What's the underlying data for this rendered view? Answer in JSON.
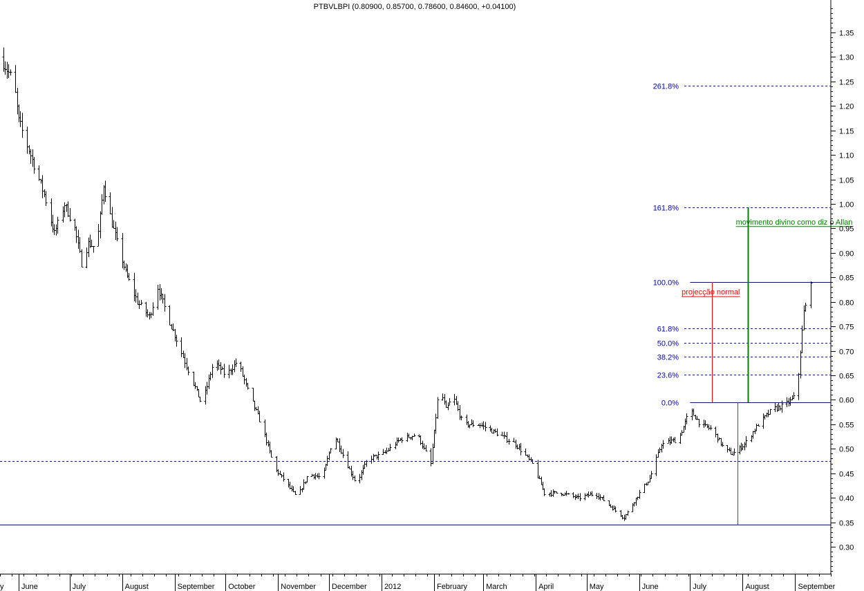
{
  "chart_data": {
    "type": "ohlc",
    "title": "PTBVLBPI (0.80900, 0.85700, 0.78600, 0.84600, +0.04100)",
    "price_axis": {
      "ylim": [
        0.245,
        1.405
      ],
      "tick_values": [
        0.3,
        0.35,
        0.4,
        0.45,
        0.5,
        0.55,
        0.6,
        0.65,
        0.7,
        0.75,
        0.8,
        0.85,
        0.9,
        0.95,
        1.0,
        1.05,
        1.1,
        1.15,
        1.2,
        1.25,
        1.3,
        1.35
      ],
      "tick_labels": [
        "0.30",
        "0.35",
        "0.40",
        "0.45",
        "0.50",
        "0.55",
        "0.60",
        "0.65",
        "0.70",
        "0.75",
        "0.80",
        "0.85",
        "0.90",
        "0.95",
        "1.00",
        "1.05",
        "1.10",
        "1.15",
        "1.20",
        "1.25",
        "1.30",
        "1.35"
      ]
    },
    "time_axis": {
      "start": "2011-05-21",
      "end": "2012-09-22",
      "month_separators": [
        "2011-06-01",
        "2011-07-01",
        "2011-08-01",
        "2011-09-01",
        "2011-10-01",
        "2011-11-01",
        "2011-12-01",
        "2012-01-01",
        "2012-02-01",
        "2012-03-01",
        "2012-04-01",
        "2012-05-01",
        "2012-06-01",
        "2012-07-01",
        "2012-08-01",
        "2012-09-01"
      ],
      "labels": [
        {
          "text": "y",
          "date": "2011-05-22"
        },
        {
          "text": "June",
          "date": "2011-06-01"
        },
        {
          "text": "July",
          "date": "2011-07-01"
        },
        {
          "text": "August",
          "date": "2011-08-01"
        },
        {
          "text": "September",
          "date": "2011-09-01"
        },
        {
          "text": "October",
          "date": "2011-10-01"
        },
        {
          "text": "November",
          "date": "2011-11-01"
        },
        {
          "text": "December",
          "date": "2011-12-01"
        },
        {
          "text": "2012",
          "date": "2012-01-01"
        },
        {
          "text": "February",
          "date": "2012-02-01"
        },
        {
          "text": "March",
          "date": "2012-03-01"
        },
        {
          "text": "April",
          "date": "2012-04-01"
        },
        {
          "text": "May",
          "date": "2012-05-01"
        },
        {
          "text": "June",
          "date": "2012-06-01"
        },
        {
          "text": "July",
          "date": "2012-07-01"
        },
        {
          "text": "August",
          "date": "2012-08-01"
        },
        {
          "text": "September",
          "date": "2012-09-01"
        }
      ]
    },
    "price_path": [
      {
        "date": "2011-05-21",
        "price": 1.3
      },
      {
        "date": "2011-05-29",
        "price": 1.25
      },
      {
        "date": "2011-06-01",
        "price": 1.17
      },
      {
        "date": "2011-06-09",
        "price": 1.09
      },
      {
        "date": "2011-06-16",
        "price": 1.02
      },
      {
        "date": "2011-06-22",
        "price": 0.94
      },
      {
        "date": "2011-06-28",
        "price": 1.0
      },
      {
        "date": "2011-07-04",
        "price": 0.95
      },
      {
        "date": "2011-07-08",
        "price": 0.88
      },
      {
        "date": "2011-07-12",
        "price": 0.92
      },
      {
        "date": "2011-07-17",
        "price": 0.91
      },
      {
        "date": "2011-07-21",
        "price": 1.04
      },
      {
        "date": "2011-07-26",
        "price": 0.96
      },
      {
        "date": "2011-08-03",
        "price": 0.86
      },
      {
        "date": "2011-08-10",
        "price": 0.8
      },
      {
        "date": "2011-08-17",
        "price": 0.77
      },
      {
        "date": "2011-08-22",
        "price": 0.83
      },
      {
        "date": "2011-08-30",
        "price": 0.75
      },
      {
        "date": "2011-09-08",
        "price": 0.67
      },
      {
        "date": "2011-09-17",
        "price": 0.59
      },
      {
        "date": "2011-09-24",
        "price": 0.68
      },
      {
        "date": "2011-10-01",
        "price": 0.65
      },
      {
        "date": "2011-10-08",
        "price": 0.68
      },
      {
        "date": "2011-10-14",
        "price": 0.62
      },
      {
        "date": "2011-10-22",
        "price": 0.55
      },
      {
        "date": "2011-10-30",
        "price": 0.46
      },
      {
        "date": "2011-11-06",
        "price": 0.43
      },
      {
        "date": "2011-11-12",
        "price": 0.4
      },
      {
        "date": "2011-11-19",
        "price": 0.45
      },
      {
        "date": "2011-11-27",
        "price": 0.44
      },
      {
        "date": "2011-12-04",
        "price": 0.53
      },
      {
        "date": "2011-12-10",
        "price": 0.48
      },
      {
        "date": "2011-12-17",
        "price": 0.43
      },
      {
        "date": "2011-12-24",
        "price": 0.48
      },
      {
        "date": "2012-01-02",
        "price": 0.49
      },
      {
        "date": "2012-01-12",
        "price": 0.52
      },
      {
        "date": "2012-01-22",
        "price": 0.53
      },
      {
        "date": "2012-01-30",
        "price": 0.47
      },
      {
        "date": "2012-02-04",
        "price": 0.63
      },
      {
        "date": "2012-02-08",
        "price": 0.58
      },
      {
        "date": "2012-02-12",
        "price": 0.61
      },
      {
        "date": "2012-02-18",
        "price": 0.55
      },
      {
        "date": "2012-02-28",
        "price": 0.55
      },
      {
        "date": "2012-03-10",
        "price": 0.53
      },
      {
        "date": "2012-03-20",
        "price": 0.51
      },
      {
        "date": "2012-03-30",
        "price": 0.47
      },
      {
        "date": "2012-04-06",
        "price": 0.41
      },
      {
        "date": "2012-04-16",
        "price": 0.41
      },
      {
        "date": "2012-04-26",
        "price": 0.4
      },
      {
        "date": "2012-05-06",
        "price": 0.41
      },
      {
        "date": "2012-05-16",
        "price": 0.38
      },
      {
        "date": "2012-05-23",
        "price": 0.36
      },
      {
        "date": "2012-06-01",
        "price": 0.41
      },
      {
        "date": "2012-06-07",
        "price": 0.44
      },
      {
        "date": "2012-06-14",
        "price": 0.51
      },
      {
        "date": "2012-06-24",
        "price": 0.52
      },
      {
        "date": "2012-07-01",
        "price": 0.58
      },
      {
        "date": "2012-07-07",
        "price": 0.55
      },
      {
        "date": "2012-07-14",
        "price": 0.54
      },
      {
        "date": "2012-07-21",
        "price": 0.5
      },
      {
        "date": "2012-07-26",
        "price": 0.49
      },
      {
        "date": "2012-08-02",
        "price": 0.51
      },
      {
        "date": "2012-08-10",
        "price": 0.55
      },
      {
        "date": "2012-08-18",
        "price": 0.58
      },
      {
        "date": "2012-08-26",
        "price": 0.59
      },
      {
        "date": "2012-09-02",
        "price": 0.61
      },
      {
        "date": "2012-09-04",
        "price": 0.7
      },
      {
        "date": "2012-09-06",
        "price": 0.78
      },
      {
        "date": "2012-09-08",
        "price": 0.8
      },
      {
        "date": "2012-09-10",
        "price": 0.846
      }
    ],
    "fib_levels": [
      {
        "label": "261.8%",
        "value": 1.241
      },
      {
        "label": "161.8%",
        "value": 0.993
      },
      {
        "label": "100.0%",
        "value": 0.84
      },
      {
        "label": "61.8%",
        "value": 0.746
      },
      {
        "label": "50.0%",
        "value": 0.717
      },
      {
        "label": "38.2%",
        "value": 0.688
      },
      {
        "label": "23.6%",
        "value": 0.652
      },
      {
        "label": "0.0%",
        "value": 0.595
      }
    ],
    "horizontal_lines": [
      {
        "value": 0.475,
        "style": "dashed"
      },
      {
        "value": 0.345,
        "style": "solid"
      }
    ],
    "annotations": [
      {
        "text": "movimento divino como diz o Allan",
        "color": "#008000",
        "date": "2012-07-28",
        "value": 0.958
      },
      {
        "text": "projecção normal",
        "color": "#ff0000",
        "date": "2012-06-26",
        "value": 0.815
      }
    ],
    "projection_lines": [
      {
        "color": "#ff0000",
        "date": "2012-07-14",
        "from": 0.595,
        "to": 0.84
      },
      {
        "color": "#008000",
        "date": "2012-08-04",
        "from": 0.595,
        "to": 0.993
      },
      {
        "color": "#ff0000",
        "date": "2012-07-29",
        "from": 0.345,
        "to": 0.595
      }
    ],
    "colors": {
      "bars": "#000000",
      "fib": "#0000c8",
      "green": "#008000",
      "red": "#ff0000"
    },
    "grid": false,
    "legend": "none"
  }
}
